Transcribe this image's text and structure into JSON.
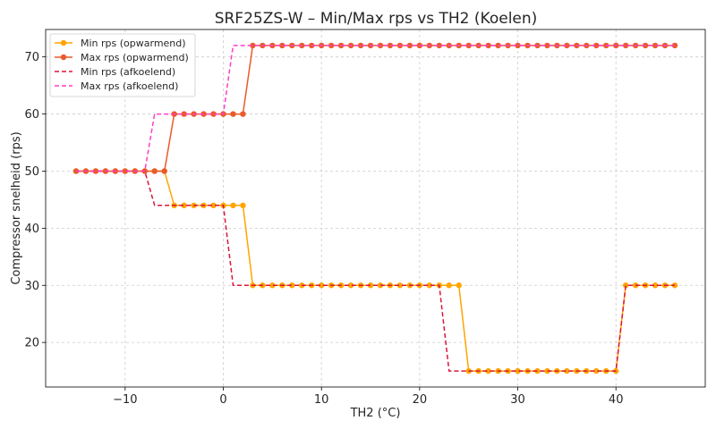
{
  "chart_data": {
    "type": "line",
    "title": "SRF25ZS-W – Min/Max rps vs TH2 (Koelen)",
    "xlabel": "TH2 (°C)",
    "ylabel": "Compressor snelheid (rps)",
    "xlim": [
      -18.1,
      49.1
    ],
    "ylim": [
      12.2,
      74.8
    ],
    "xticks": [
      -10,
      0,
      10,
      20,
      30,
      40
    ],
    "yticks": [
      20,
      30,
      40,
      50,
      60,
      70
    ],
    "grid": true,
    "legend_position": "top-left",
    "x": [
      -15,
      -14,
      -13,
      -12,
      -11,
      -10,
      -9,
      -8,
      -7,
      -6,
      -5,
      -4,
      -3,
      -2,
      -1,
      0,
      1,
      2,
      3,
      4,
      5,
      6,
      7,
      8,
      9,
      10,
      11,
      12,
      13,
      14,
      15,
      16,
      17,
      18,
      19,
      20,
      21,
      22,
      23,
      24,
      25,
      26,
      27,
      28,
      29,
      30,
      31,
      32,
      33,
      34,
      35,
      36,
      37,
      38,
      39,
      40,
      41,
      42,
      43,
      44,
      45,
      46
    ],
    "series": [
      {
        "name": "Min rps (opwarmend)",
        "color": "#ffa500",
        "style": "solid-marker",
        "values": [
          50,
          50,
          50,
          50,
          50,
          50,
          50,
          50,
          50,
          50,
          44,
          44,
          44,
          44,
          44,
          44,
          44,
          44,
          30,
          30,
          30,
          30,
          30,
          30,
          30,
          30,
          30,
          30,
          30,
          30,
          30,
          30,
          30,
          30,
          30,
          30,
          30,
          30,
          30,
          30,
          15,
          15,
          15,
          15,
          15,
          15,
          15,
          15,
          15,
          15,
          15,
          15,
          15,
          15,
          15,
          15,
          30,
          30,
          30,
          30,
          30,
          30
        ]
      },
      {
        "name": "Max rps (opwarmend)",
        "color": "#ea5a2a",
        "style": "solid-marker",
        "values": [
          50,
          50,
          50,
          50,
          50,
          50,
          50,
          50,
          50,
          50,
          60,
          60,
          60,
          60,
          60,
          60,
          60,
          60,
          72,
          72,
          72,
          72,
          72,
          72,
          72,
          72,
          72,
          72,
          72,
          72,
          72,
          72,
          72,
          72,
          72,
          72,
          72,
          72,
          72,
          72,
          72,
          72,
          72,
          72,
          72,
          72,
          72,
          72,
          72,
          72,
          72,
          72,
          72,
          72,
          72,
          72,
          72,
          72,
          72,
          72,
          72,
          72
        ]
      },
      {
        "name": "Min rps (afkoelend)",
        "color": "#dc143c",
        "style": "dashed",
        "values": [
          50,
          50,
          50,
          50,
          50,
          50,
          50,
          50,
          44,
          44,
          44,
          44,
          44,
          44,
          44,
          44,
          30,
          30,
          30,
          30,
          30,
          30,
          30,
          30,
          30,
          30,
          30,
          30,
          30,
          30,
          30,
          30,
          30,
          30,
          30,
          30,
          30,
          30,
          15,
          15,
          15,
          15,
          15,
          15,
          15,
          15,
          15,
          15,
          15,
          15,
          15,
          15,
          15,
          15,
          15,
          15,
          30,
          30,
          30,
          30,
          30,
          30
        ]
      },
      {
        "name": "Max rps (afkoelend)",
        "color": "#ff3ec8",
        "style": "dashed",
        "values": [
          50,
          50,
          50,
          50,
          50,
          50,
          50,
          50,
          60,
          60,
          60,
          60,
          60,
          60,
          60,
          60,
          72,
          72,
          72,
          72,
          72,
          72,
          72,
          72,
          72,
          72,
          72,
          72,
          72,
          72,
          72,
          72,
          72,
          72,
          72,
          72,
          72,
          72,
          72,
          72,
          72,
          72,
          72,
          72,
          72,
          72,
          72,
          72,
          72,
          72,
          72,
          72,
          72,
          72,
          72,
          72,
          72,
          72,
          72,
          72,
          72,
          72
        ]
      }
    ]
  }
}
